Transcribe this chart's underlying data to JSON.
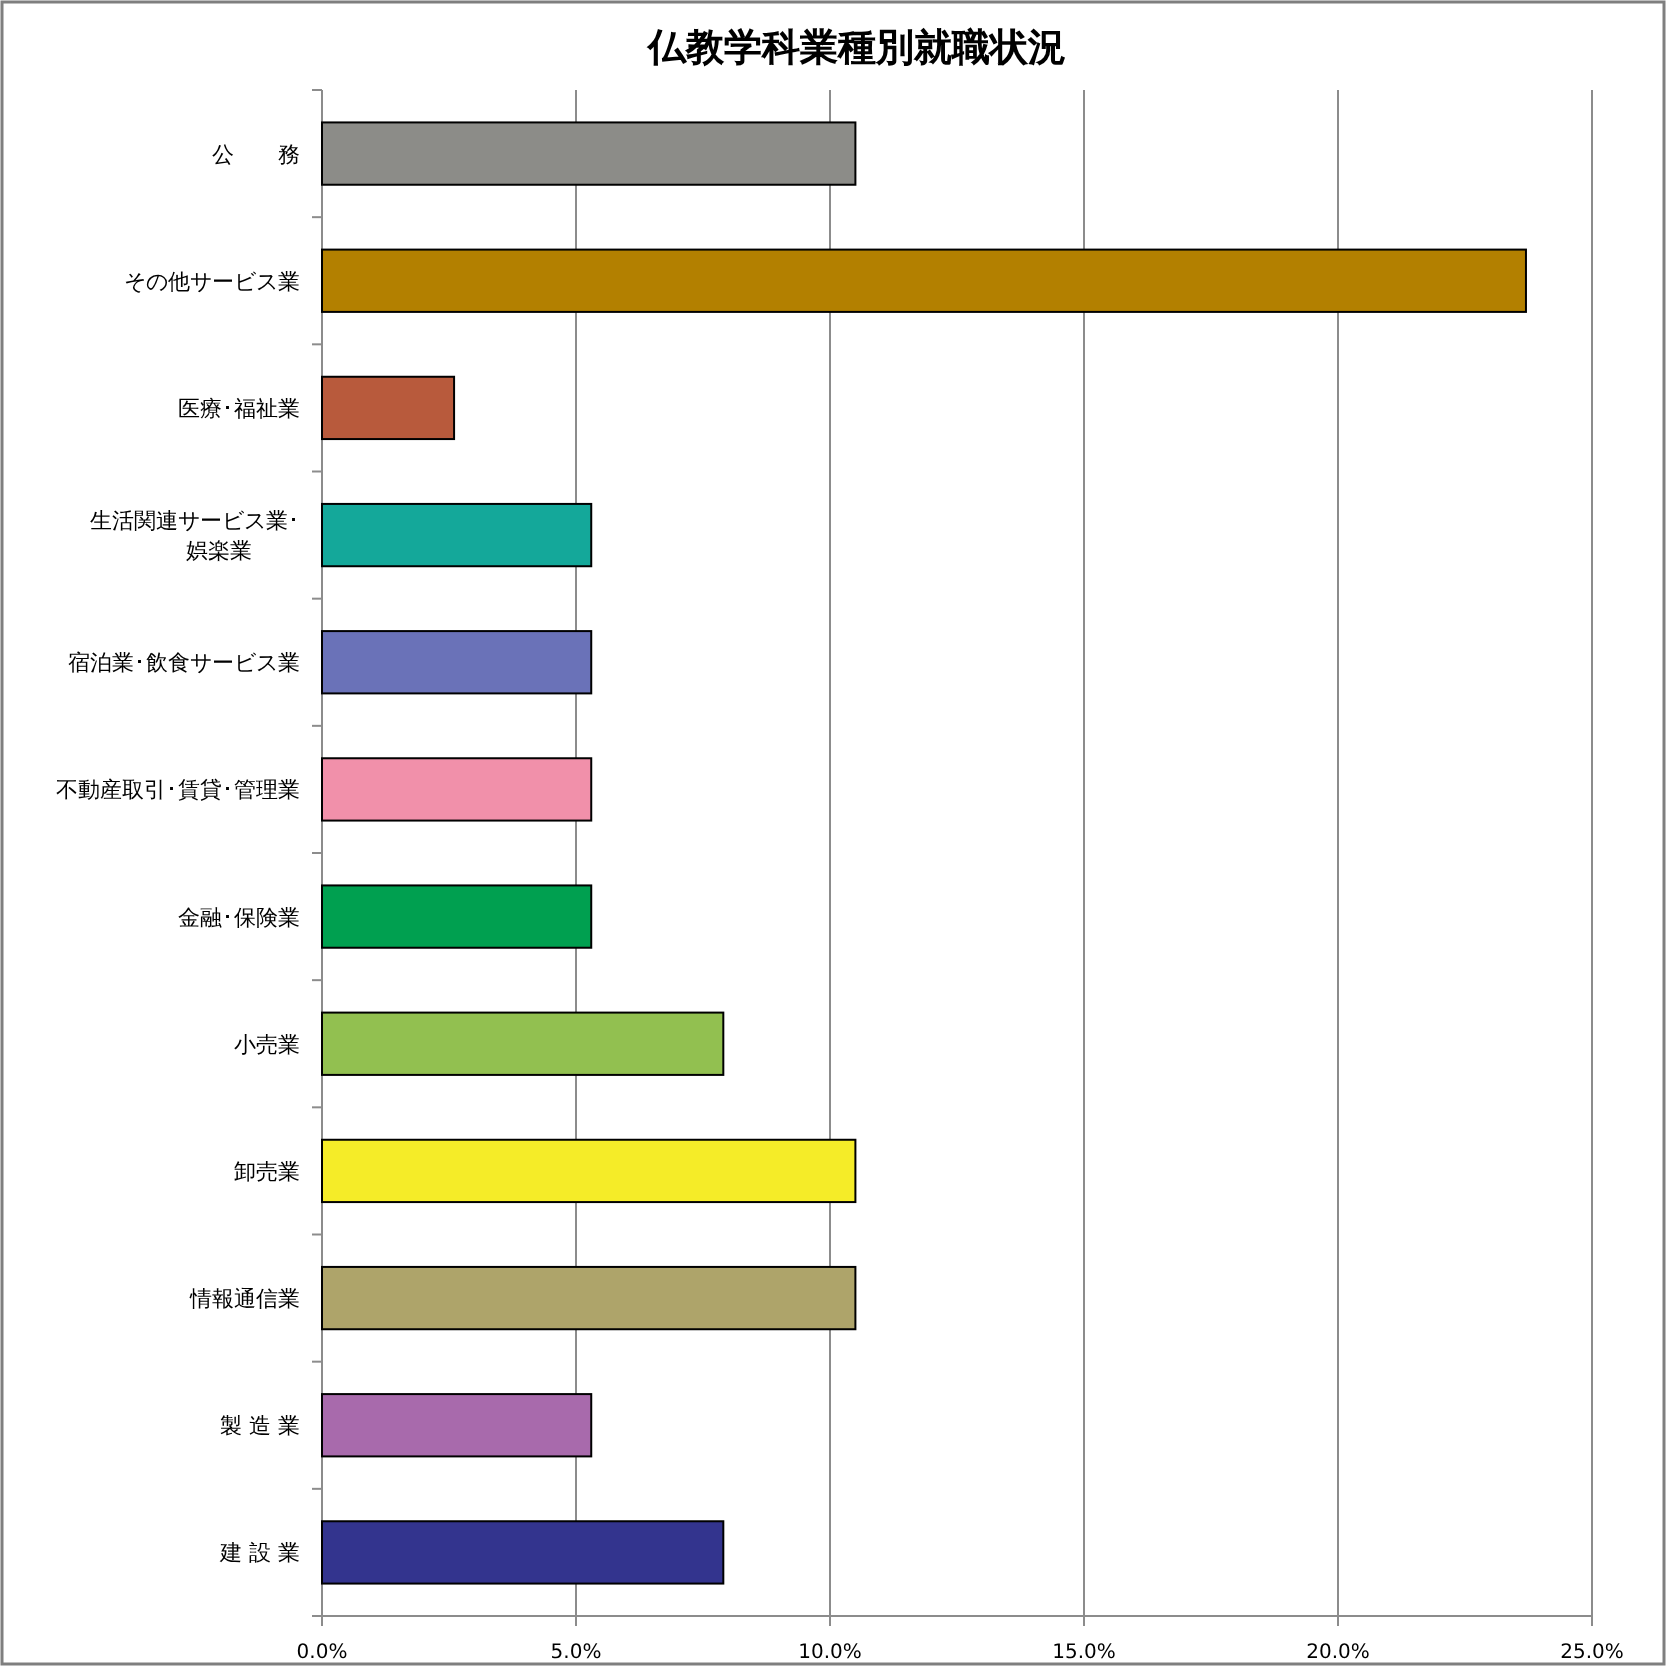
{
  "chart_data": {
    "type": "bar",
    "orientation": "horizontal",
    "title": "仏教学科業種別就職状況",
    "categories": [
      "公　　務",
      "その他サービス業",
      "医療･福祉業",
      "生活関連サービス業･娯楽業",
      "宿泊業･飲食サービス業",
      "不動産取引･賃貸･管理業",
      "金融･保険業",
      "小売業",
      "卸売業",
      "情報通信業",
      "製 造 業",
      "建 設 業"
    ],
    "values": [
      10.5,
      23.7,
      2.6,
      5.3,
      5.3,
      5.3,
      5.3,
      7.9,
      10.5,
      10.5,
      5.3,
      7.9
    ],
    "colors": [
      "#8c8c88",
      "#b38000",
      "#b85a3c",
      "#14a89a",
      "#6a72b8",
      "#f190aa",
      "#00a050",
      "#92c050",
      "#f5ec28",
      "#aea46a",
      "#a86aac",
      "#33348e"
    ],
    "xlim": [
      0,
      25
    ],
    "xticks": [
      {
        "value": 0,
        "label": "0.0%"
      },
      {
        "value": 5,
        "label": "5.0%"
      },
      {
        "value": 10,
        "label": "10.0%"
      },
      {
        "value": 15,
        "label": "15.0%"
      },
      {
        "value": 20,
        "label": "20.0%"
      },
      {
        "value": 25,
        "label": "25.0%"
      }
    ],
    "grid": "x"
  }
}
